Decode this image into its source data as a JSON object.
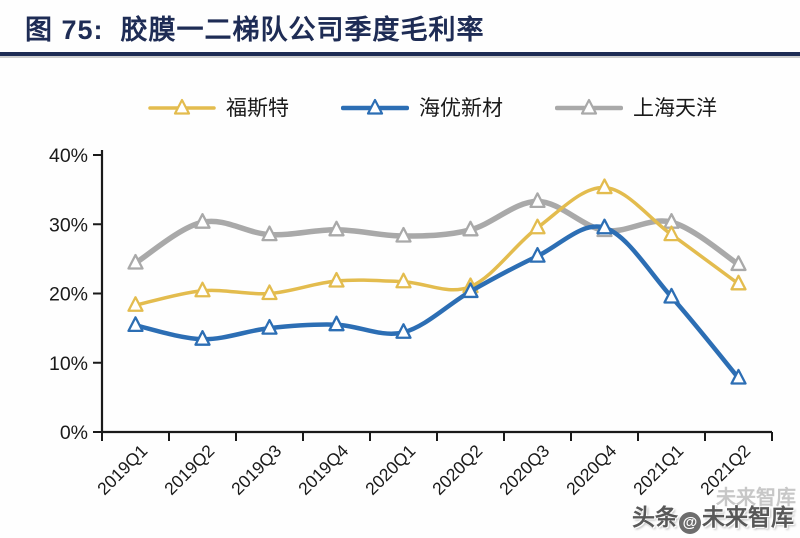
{
  "header": {
    "title": "图 75:  胶膜一二梯队公司季度毛利率"
  },
  "chart_data": {
    "type": "line",
    "title": "胶膜一二梯队公司季度毛利率",
    "categories": [
      "2019Q1",
      "2019Q2",
      "2019Q3",
      "2019Q4",
      "2020Q1",
      "2020Q2",
      "2020Q3",
      "2020Q4",
      "2021Q1",
      "2021Q2"
    ],
    "series": [
      {
        "name": "福斯特",
        "color": "#E3BC4E",
        "line_width": 3.5,
        "values": [
          18.3,
          20.4,
          20.0,
          21.8,
          21.7,
          21.0,
          29.5,
          35.3,
          28.5,
          21.4
        ]
      },
      {
        "name": "海优新材",
        "color": "#2C6EB4",
        "line_width": 4.5,
        "values": [
          15.4,
          13.4,
          15.0,
          15.5,
          14.4,
          20.3,
          25.4,
          29.5,
          19.5,
          7.8
        ]
      },
      {
        "name": "上海天洋",
        "color": "#A9A9A9",
        "line_width": 5.5,
        "values": [
          24.4,
          30.3,
          28.5,
          29.2,
          28.3,
          29.2,
          33.3,
          29.1,
          30.3,
          24.2
        ]
      }
    ],
    "ylabel": "",
    "xlabel": "",
    "ylim": [
      0,
      40
    ],
    "yticks": [
      "0%",
      "10%",
      "20%",
      "30%",
      "40%"
    ],
    "grid": false,
    "legend_position": "top",
    "marker": "triangle",
    "z_order": [
      2,
      0,
      1
    ]
  },
  "watermark": {
    "ghost": "未来智库",
    "prefix": "头条",
    "logo": "@",
    "suffix": "未来智库"
  }
}
